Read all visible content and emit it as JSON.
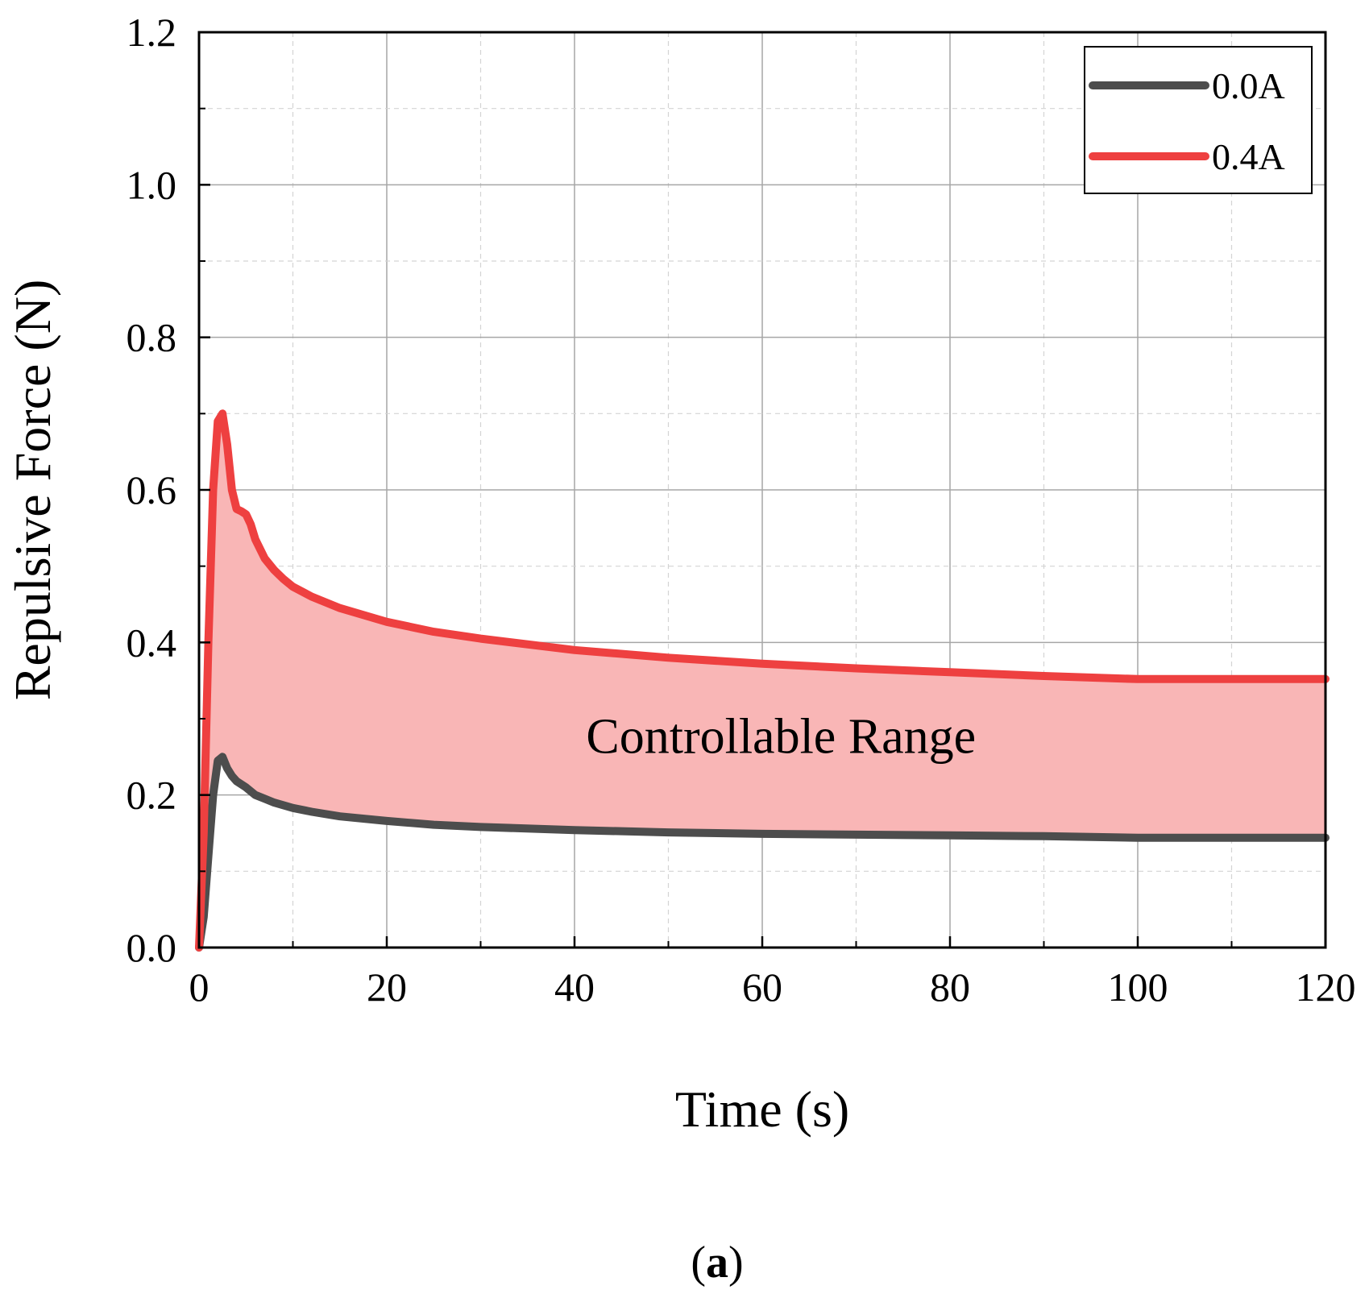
{
  "chart_data": {
    "type": "line",
    "title": "",
    "xlabel": "Time (s)",
    "ylabel": "Repulsive Force (N)",
    "xlim": [
      0,
      120
    ],
    "ylim": [
      0,
      1.2
    ],
    "xticks": [
      0,
      20,
      40,
      60,
      80,
      100,
      120
    ],
    "xtick_labels": [
      "0",
      "20",
      "40",
      "60",
      "80",
      "100",
      "120"
    ],
    "yticks": [
      0.0,
      0.2,
      0.4,
      0.6,
      0.8,
      1.0,
      1.2
    ],
    "ytick_labels": [
      "0.0",
      "0.2",
      "0.4",
      "0.6",
      "0.8",
      "1.0",
      "1.2"
    ],
    "grid": true,
    "legend_position": "top-right",
    "series": [
      {
        "name": "0.0A",
        "color": "#4d4d4d",
        "x": [
          0,
          0.5,
          1,
          1.5,
          2,
          2.5,
          3,
          3.5,
          4,
          5,
          6,
          7,
          8,
          10,
          12,
          15,
          20,
          25,
          30,
          40,
          50,
          60,
          70,
          80,
          90,
          100,
          110,
          120
        ],
        "y": [
          0,
          0.04,
          0.12,
          0.2,
          0.245,
          0.25,
          0.235,
          0.225,
          0.218,
          0.21,
          0.2,
          0.195,
          0.19,
          0.183,
          0.178,
          0.172,
          0.166,
          0.161,
          0.158,
          0.154,
          0.151,
          0.149,
          0.148,
          0.147,
          0.146,
          0.144,
          0.144,
          0.144
        ]
      },
      {
        "name": "0.4A",
        "color": "#ee4040",
        "x": [
          0,
          0.5,
          1,
          1.5,
          2,
          2.5,
          3,
          3.5,
          4,
          4.5,
          5,
          5.5,
          6,
          7,
          8,
          9,
          10,
          12,
          15,
          20,
          25,
          30,
          40,
          50,
          60,
          70,
          80,
          90,
          100,
          110,
          120
        ],
        "y": [
          0,
          0.15,
          0.4,
          0.6,
          0.69,
          0.7,
          0.66,
          0.6,
          0.575,
          0.572,
          0.568,
          0.555,
          0.535,
          0.51,
          0.495,
          0.483,
          0.473,
          0.46,
          0.445,
          0.427,
          0.414,
          0.405,
          0.39,
          0.38,
          0.372,
          0.366,
          0.361,
          0.356,
          0.352,
          0.352,
          0.352
        ]
      }
    ],
    "fill_between": {
      "label": "Controllable Range",
      "color": "#f9b6b6",
      "lower_series": "0.0A",
      "upper_series": "0.4A"
    },
    "annotations": [
      {
        "text": "Controllable Range",
        "x": 62,
        "y": 0.255
      }
    ]
  },
  "panel_label": {
    "open": "(",
    "letter": "a",
    "close": ")"
  }
}
